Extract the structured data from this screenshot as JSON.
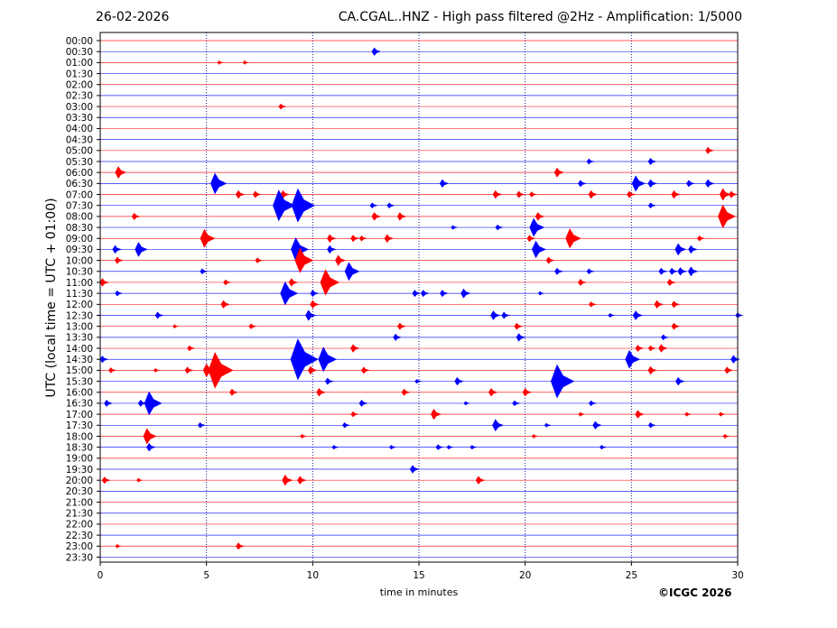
{
  "header": {
    "date": "26-02-2026",
    "title": "CA.CGAL..HNZ - High pass filtered @2Hz - Amplification: 1/5000"
  },
  "footer": {
    "copyright": "©ICGC 2026"
  },
  "colors": {
    "trace_a": "#ff0000",
    "trace_b": "#0000ff",
    "grid": "#000080",
    "frame": "#000000"
  },
  "chart_data": {
    "type": "line",
    "title": "CA.CGAL..HNZ - High pass filtered @2Hz - Amplification: 1/5000",
    "xlabel": "time in minutes",
    "ylabel": "UTC (local time = UTC + 01:00)",
    "xlim": [
      0,
      30
    ],
    "xticks": [
      0,
      5,
      10,
      15,
      20,
      25,
      30
    ],
    "vertical_grid": "dotted at every 5 minutes",
    "rows": [
      "00:00",
      "00:30",
      "01:00",
      "01:30",
      "02:00",
      "02:30",
      "03:00",
      "03:30",
      "04:00",
      "04:30",
      "05:00",
      "05:30",
      "06:00",
      "06:30",
      "07:00",
      "07:30",
      "08:00",
      "08:30",
      "09:00",
      "09:30",
      "10:00",
      "10:30",
      "11:00",
      "11:30",
      "12:00",
      "12:30",
      "13:00",
      "13:30",
      "14:00",
      "14:30",
      "15:00",
      "15:30",
      "16:00",
      "16:30",
      "17:00",
      "17:30",
      "18:00",
      "18:30",
      "19:00",
      "19:30",
      "20:00",
      "20:30",
      "21:00",
      "21:30",
      "22:00",
      "22:30",
      "23:00",
      "23:30"
    ],
    "row_colors": "alternating red (even rows) and blue (odd rows)",
    "events": [
      {
        "row": "00:30",
        "minute": 12.9,
        "amplitude": 0.6
      },
      {
        "row": "01:00",
        "minute": 5.6,
        "amplitude": 0.2
      },
      {
        "row": "01:00",
        "minute": 6.8,
        "amplitude": 0.15
      },
      {
        "row": "03:00",
        "minute": 8.5,
        "amplitude": 0.4
      },
      {
        "row": "05:00",
        "minute": 28.6,
        "amplitude": 0.5
      },
      {
        "row": "05:30",
        "minute": 23.0,
        "amplitude": 0.4
      },
      {
        "row": "05:30",
        "minute": 25.9,
        "amplitude": 0.5
      },
      {
        "row": "06:00",
        "minute": 0.85,
        "amplitude": 0.9
      },
      {
        "row": "06:00",
        "minute": 21.5,
        "amplitude": 0.7
      },
      {
        "row": "06:30",
        "minute": 5.4,
        "amplitude": 1.6
      },
      {
        "row": "06:30",
        "minute": 16.1,
        "amplitude": 0.6
      },
      {
        "row": "06:30",
        "minute": 22.6,
        "amplitude": 0.5
      },
      {
        "row": "06:30",
        "minute": 25.2,
        "amplitude": 1.2
      },
      {
        "row": "06:30",
        "minute": 25.9,
        "amplitude": 0.6
      },
      {
        "row": "06:30",
        "minute": 27.7,
        "amplitude": 0.5
      },
      {
        "row": "06:30",
        "minute": 28.6,
        "amplitude": 0.6
      },
      {
        "row": "07:00",
        "minute": 6.5,
        "amplitude": 0.6
      },
      {
        "row": "07:00",
        "minute": 7.3,
        "amplitude": 0.5
      },
      {
        "row": "07:00",
        "minute": 8.6,
        "amplitude": 0.6
      },
      {
        "row": "07:00",
        "minute": 18.6,
        "amplitude": 0.6
      },
      {
        "row": "07:00",
        "minute": 19.7,
        "amplitude": 0.5
      },
      {
        "row": "07:00",
        "minute": 20.3,
        "amplitude": 0.4
      },
      {
        "row": "07:00",
        "minute": 23.1,
        "amplitude": 0.6
      },
      {
        "row": "07:00",
        "minute": 24.9,
        "amplitude": 0.5
      },
      {
        "row": "07:00",
        "minute": 27.0,
        "amplitude": 0.6
      },
      {
        "row": "07:00",
        "minute": 29.3,
        "amplitude": 0.9
      },
      {
        "row": "07:00",
        "minute": 29.7,
        "amplitude": 0.5
      },
      {
        "row": "07:30",
        "minute": 8.4,
        "amplitude": 2.4
      },
      {
        "row": "07:30",
        "minute": 9.3,
        "amplitude": 2.6
      },
      {
        "row": "07:30",
        "minute": 12.8,
        "amplitude": 0.4
      },
      {
        "row": "07:30",
        "minute": 13.6,
        "amplitude": 0.4
      },
      {
        "row": "07:30",
        "minute": 25.9,
        "amplitude": 0.4
      },
      {
        "row": "08:00",
        "minute": 1.6,
        "amplitude": 0.5
      },
      {
        "row": "08:00",
        "minute": 12.9,
        "amplitude": 0.6
      },
      {
        "row": "08:00",
        "minute": 14.1,
        "amplitude": 0.6
      },
      {
        "row": "08:00",
        "minute": 20.6,
        "amplitude": 0.6
      },
      {
        "row": "08:00",
        "minute": 29.3,
        "amplitude": 1.8
      },
      {
        "row": "08:30",
        "minute": 16.6,
        "amplitude": 0.3
      },
      {
        "row": "08:30",
        "minute": 18.7,
        "amplitude": 0.4
      },
      {
        "row": "08:30",
        "minute": 20.4,
        "amplitude": 1.4
      },
      {
        "row": "09:00",
        "minute": 4.9,
        "amplitude": 1.4
      },
      {
        "row": "09:00",
        "minute": 10.8,
        "amplitude": 0.6
      },
      {
        "row": "09:00",
        "minute": 11.9,
        "amplitude": 0.5
      },
      {
        "row": "09:00",
        "minute": 12.3,
        "amplitude": 0.4
      },
      {
        "row": "09:00",
        "minute": 13.5,
        "amplitude": 0.6
      },
      {
        "row": "09:00",
        "minute": 20.2,
        "amplitude": 0.5
      },
      {
        "row": "09:00",
        "minute": 22.1,
        "amplitude": 1.5
      },
      {
        "row": "09:00",
        "minute": 28.2,
        "amplitude": 0.4
      },
      {
        "row": "09:30",
        "minute": 0.7,
        "amplitude": 0.6
      },
      {
        "row": "09:30",
        "minute": 1.8,
        "amplitude": 1.1
      },
      {
        "row": "09:30",
        "minute": 9.2,
        "amplitude": 1.8
      },
      {
        "row": "09:30",
        "minute": 10.8,
        "amplitude": 0.6
      },
      {
        "row": "09:30",
        "minute": 20.5,
        "amplitude": 1.3
      },
      {
        "row": "09:30",
        "minute": 27.2,
        "amplitude": 0.9
      },
      {
        "row": "09:30",
        "minute": 27.8,
        "amplitude": 0.6
      },
      {
        "row": "10:00",
        "minute": 0.8,
        "amplitude": 0.5
      },
      {
        "row": "10:00",
        "minute": 7.4,
        "amplitude": 0.4
      },
      {
        "row": "10:00",
        "minute": 9.4,
        "amplitude": 1.9
      },
      {
        "row": "10:00",
        "minute": 11.2,
        "amplitude": 0.8
      },
      {
        "row": "10:00",
        "minute": 21.1,
        "amplitude": 0.5
      },
      {
        "row": "10:30",
        "minute": 4.8,
        "amplitude": 0.4
      },
      {
        "row": "10:30",
        "minute": 11.7,
        "amplitude": 1.4
      },
      {
        "row": "10:30",
        "minute": 21.5,
        "amplitude": 0.5
      },
      {
        "row": "10:30",
        "minute": 23.0,
        "amplitude": 0.4
      },
      {
        "row": "10:30",
        "minute": 26.4,
        "amplitude": 0.5
      },
      {
        "row": "10:30",
        "minute": 26.9,
        "amplitude": 0.5
      },
      {
        "row": "10:30",
        "minute": 27.3,
        "amplitude": 0.6
      },
      {
        "row": "10:30",
        "minute": 27.8,
        "amplitude": 0.7
      },
      {
        "row": "11:00",
        "minute": 0.1,
        "amplitude": 0.6
      },
      {
        "row": "11:00",
        "minute": 5.9,
        "amplitude": 0.4
      },
      {
        "row": "11:00",
        "minute": 9.0,
        "amplitude": 0.6
      },
      {
        "row": "11:00",
        "minute": 10.6,
        "amplitude": 2.0
      },
      {
        "row": "11:00",
        "minute": 22.6,
        "amplitude": 0.5
      },
      {
        "row": "11:00",
        "minute": 26.8,
        "amplitude": 0.5
      },
      {
        "row": "11:30",
        "minute": 0.8,
        "amplitude": 0.4
      },
      {
        "row": "11:30",
        "minute": 8.7,
        "amplitude": 1.8
      },
      {
        "row": "11:30",
        "minute": 10.0,
        "amplitude": 0.5
      },
      {
        "row": "11:30",
        "minute": 14.8,
        "amplitude": 0.5
      },
      {
        "row": "11:30",
        "minute": 15.2,
        "amplitude": 0.5
      },
      {
        "row": "11:30",
        "minute": 16.1,
        "amplitude": 0.5
      },
      {
        "row": "11:30",
        "minute": 17.1,
        "amplitude": 0.7
      },
      {
        "row": "11:30",
        "minute": 20.7,
        "amplitude": 0.2
      },
      {
        "row": "12:00",
        "minute": 5.8,
        "amplitude": 0.6
      },
      {
        "row": "12:00",
        "minute": 10.0,
        "amplitude": 0.6
      },
      {
        "row": "12:00",
        "minute": 23.1,
        "amplitude": 0.4
      },
      {
        "row": "12:00",
        "minute": 26.2,
        "amplitude": 0.6
      },
      {
        "row": "12:00",
        "minute": 27.0,
        "amplitude": 0.5
      },
      {
        "row": "12:30",
        "minute": 2.7,
        "amplitude": 0.5
      },
      {
        "row": "12:30",
        "minute": 9.8,
        "amplitude": 0.8
      },
      {
        "row": "12:30",
        "minute": 18.5,
        "amplitude": 0.7
      },
      {
        "row": "12:30",
        "minute": 19.0,
        "amplitude": 0.5
      },
      {
        "row": "12:30",
        "minute": 24.0,
        "amplitude": 0.3
      },
      {
        "row": "12:30",
        "minute": 25.2,
        "amplitude": 0.7
      },
      {
        "row": "12:30",
        "minute": 30.0,
        "amplitude": 0.4
      },
      {
        "row": "13:00",
        "minute": 3.5,
        "amplitude": 0.15
      },
      {
        "row": "13:00",
        "minute": 7.1,
        "amplitude": 0.4
      },
      {
        "row": "13:00",
        "minute": 14.1,
        "amplitude": 0.5
      },
      {
        "row": "13:00",
        "minute": 19.6,
        "amplitude": 0.5
      },
      {
        "row": "13:00",
        "minute": 27.0,
        "amplitude": 0.5
      },
      {
        "row": "13:30",
        "minute": 13.9,
        "amplitude": 0.5
      },
      {
        "row": "13:30",
        "minute": 19.7,
        "amplitude": 0.6
      },
      {
        "row": "13:30",
        "minute": 26.5,
        "amplitude": 0.4
      },
      {
        "row": "14:00",
        "minute": 4.2,
        "amplitude": 0.4
      },
      {
        "row": "14:00",
        "minute": 11.9,
        "amplitude": 0.6
      },
      {
        "row": "14:00",
        "minute": 25.3,
        "amplitude": 0.5
      },
      {
        "row": "14:00",
        "minute": 25.9,
        "amplitude": 0.4
      },
      {
        "row": "14:00",
        "minute": 26.4,
        "amplitude": 0.6
      },
      {
        "row": "14:30",
        "minute": 0.1,
        "amplitude": 0.5
      },
      {
        "row": "14:30",
        "minute": 9.3,
        "amplitude": 3.2
      },
      {
        "row": "14:30",
        "minute": 10.5,
        "amplitude": 1.9
      },
      {
        "row": "14:30",
        "minute": 24.9,
        "amplitude": 1.4
      },
      {
        "row": "14:30",
        "minute": 29.8,
        "amplitude": 0.6
      },
      {
        "row": "15:00",
        "minute": 0.5,
        "amplitude": 0.4
      },
      {
        "row": "15:00",
        "minute": 2.6,
        "amplitude": 0.2
      },
      {
        "row": "15:00",
        "minute": 4.1,
        "amplitude": 0.5
      },
      {
        "row": "15:00",
        "minute": 5.0,
        "amplitude": 1.0
      },
      {
        "row": "15:00",
        "minute": 5.4,
        "amplitude": 2.8
      },
      {
        "row": "15:00",
        "minute": 9.9,
        "amplitude": 0.6
      },
      {
        "row": "15:00",
        "minute": 12.4,
        "amplitude": 0.5
      },
      {
        "row": "15:00",
        "minute": 25.9,
        "amplitude": 0.6
      },
      {
        "row": "15:00",
        "minute": 29.5,
        "amplitude": 0.5
      },
      {
        "row": "15:30",
        "minute": 10.7,
        "amplitude": 0.5
      },
      {
        "row": "15:30",
        "minute": 14.9,
        "amplitude": 0.3
      },
      {
        "row": "15:30",
        "minute": 16.8,
        "amplitude": 0.6
      },
      {
        "row": "15:30",
        "minute": 21.5,
        "amplitude": 2.6
      },
      {
        "row": "15:30",
        "minute": 27.2,
        "amplitude": 0.6
      },
      {
        "row": "16:00",
        "minute": 6.2,
        "amplitude": 0.5
      },
      {
        "row": "16:00",
        "minute": 10.3,
        "amplitude": 0.6
      },
      {
        "row": "16:00",
        "minute": 14.3,
        "amplitude": 0.5
      },
      {
        "row": "16:00",
        "minute": 18.4,
        "amplitude": 0.6
      },
      {
        "row": "16:00",
        "minute": 20.0,
        "amplitude": 0.6
      },
      {
        "row": "16:30",
        "minute": 0.3,
        "amplitude": 0.5
      },
      {
        "row": "16:30",
        "minute": 1.9,
        "amplitude": 0.5
      },
      {
        "row": "16:30",
        "minute": 2.3,
        "amplitude": 1.8
      },
      {
        "row": "16:30",
        "minute": 12.3,
        "amplitude": 0.5
      },
      {
        "row": "16:30",
        "minute": 17.2,
        "amplitude": 0.2
      },
      {
        "row": "16:30",
        "minute": 19.5,
        "amplitude": 0.4
      },
      {
        "row": "16:30",
        "minute": 23.1,
        "amplitude": 0.4
      },
      {
        "row": "17:00",
        "minute": 11.9,
        "amplitude": 0.4
      },
      {
        "row": "17:00",
        "minute": 15.7,
        "amplitude": 0.8
      },
      {
        "row": "17:00",
        "minute": 22.6,
        "amplitude": 0.3
      },
      {
        "row": "17:00",
        "minute": 25.3,
        "amplitude": 0.6
      },
      {
        "row": "17:00",
        "minute": 27.6,
        "amplitude": 0.3
      },
      {
        "row": "17:00",
        "minute": 29.2,
        "amplitude": 0.3
      },
      {
        "row": "17:30",
        "minute": 4.7,
        "amplitude": 0.4
      },
      {
        "row": "17:30",
        "minute": 11.5,
        "amplitude": 0.4
      },
      {
        "row": "17:30",
        "minute": 18.6,
        "amplitude": 0.9
      },
      {
        "row": "17:30",
        "minute": 21.0,
        "amplitude": 0.3
      },
      {
        "row": "17:30",
        "minute": 23.3,
        "amplitude": 0.6
      },
      {
        "row": "17:30",
        "minute": 25.9,
        "amplitude": 0.4
      },
      {
        "row": "18:00",
        "minute": 2.2,
        "amplitude": 1.2
      },
      {
        "row": "18:00",
        "minute": 9.5,
        "amplitude": 0.3
      },
      {
        "row": "18:00",
        "minute": 20.4,
        "amplitude": 0.2
      },
      {
        "row": "18:00",
        "minute": 29.4,
        "amplitude": 0.3
      },
      {
        "row": "18:30",
        "minute": 2.3,
        "amplitude": 0.6
      },
      {
        "row": "18:30",
        "minute": 11.0,
        "amplitude": 0.3
      },
      {
        "row": "18:30",
        "minute": 13.7,
        "amplitude": 0.3
      },
      {
        "row": "18:30",
        "minute": 15.9,
        "amplitude": 0.4
      },
      {
        "row": "18:30",
        "minute": 16.4,
        "amplitude": 0.3
      },
      {
        "row": "18:30",
        "minute": 17.5,
        "amplitude": 0.3
      },
      {
        "row": "18:30",
        "minute": 23.6,
        "amplitude": 0.3
      },
      {
        "row": "19:30",
        "minute": 14.7,
        "amplitude": 0.6
      },
      {
        "row": "20:00",
        "minute": 0.2,
        "amplitude": 0.5
      },
      {
        "row": "20:00",
        "minute": 1.8,
        "amplitude": 0.2
      },
      {
        "row": "20:00",
        "minute": 8.7,
        "amplitude": 0.8
      },
      {
        "row": "20:00",
        "minute": 9.4,
        "amplitude": 0.6
      },
      {
        "row": "20:00",
        "minute": 17.8,
        "amplitude": 0.6
      },
      {
        "row": "23:00",
        "minute": 0.8,
        "amplitude": 0.15
      },
      {
        "row": "23:00",
        "minute": 6.5,
        "amplitude": 0.5
      }
    ]
  }
}
